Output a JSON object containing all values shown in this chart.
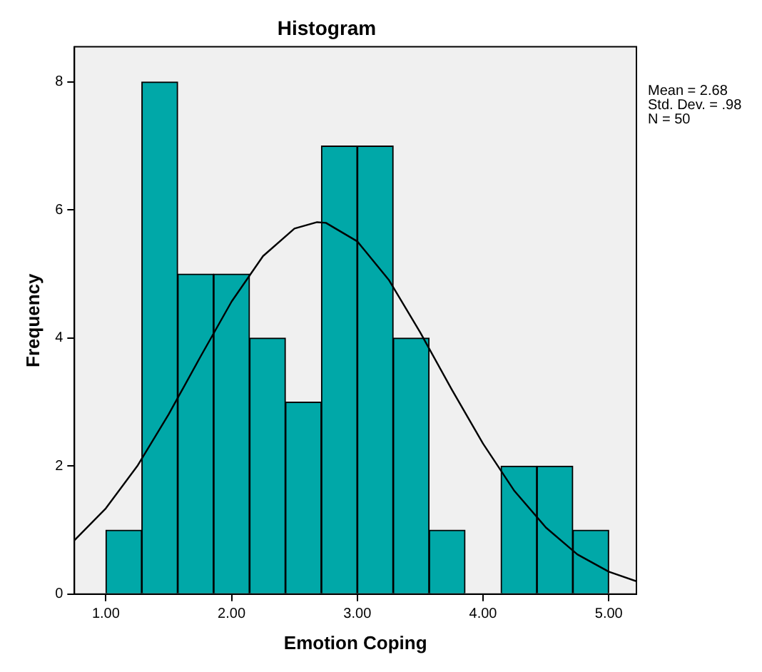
{
  "chart_data": {
    "type": "histogram",
    "title": "Histogram",
    "xlabel": "Emotion Coping",
    "ylabel": "Frequency",
    "bins": [
      1,
      1.2857,
      1.5714,
      1.8571,
      2.1429,
      2.4286,
      2.7143,
      3,
      3.2857,
      3.5714,
      3.8571,
      4.1429,
      4.4286,
      4.7143,
      5
    ],
    "values": [
      1,
      8,
      5,
      5,
      4,
      3,
      7,
      7,
      4,
      1,
      0,
      2,
      2,
      1
    ],
    "color": "#00a8a8",
    "series": [
      {
        "type": "line",
        "color": "#000000",
        "x": [
          0.75,
          1,
          1.25,
          1.5,
          1.75,
          2,
          2.25,
          2.5,
          2.68,
          2.75,
          3,
          3.25,
          3.5,
          3.75,
          4,
          4.25,
          4.5,
          4.75,
          5,
          5.22
        ],
        "values": [
          0.84,
          1.34,
          2,
          2.81,
          3.7,
          4.57,
          5.28,
          5.71,
          5.81,
          5.8,
          5.51,
          4.91,
          4.09,
          3.2,
          2.35,
          1.61,
          1.04,
          0.62,
          0.35,
          0.2
        ]
      }
    ],
    "xlim": [
      0.75,
      5.22
    ],
    "xticks": [
      {
        "value": 1,
        "label": "1.00"
      },
      {
        "value": 2,
        "label": "2.00"
      },
      {
        "value": 3,
        "label": "3.00"
      },
      {
        "value": 4,
        "label": "4.00"
      },
      {
        "value": 5,
        "label": "5.00"
      }
    ],
    "ylim": [
      0,
      8.55
    ],
    "yticks": [
      0,
      2,
      4,
      6,
      8
    ],
    "grid": false,
    "legend": false,
    "annotations": [
      "Mean = 2.68",
      "Std. Dev. = .98",
      "N = 50"
    ]
  }
}
